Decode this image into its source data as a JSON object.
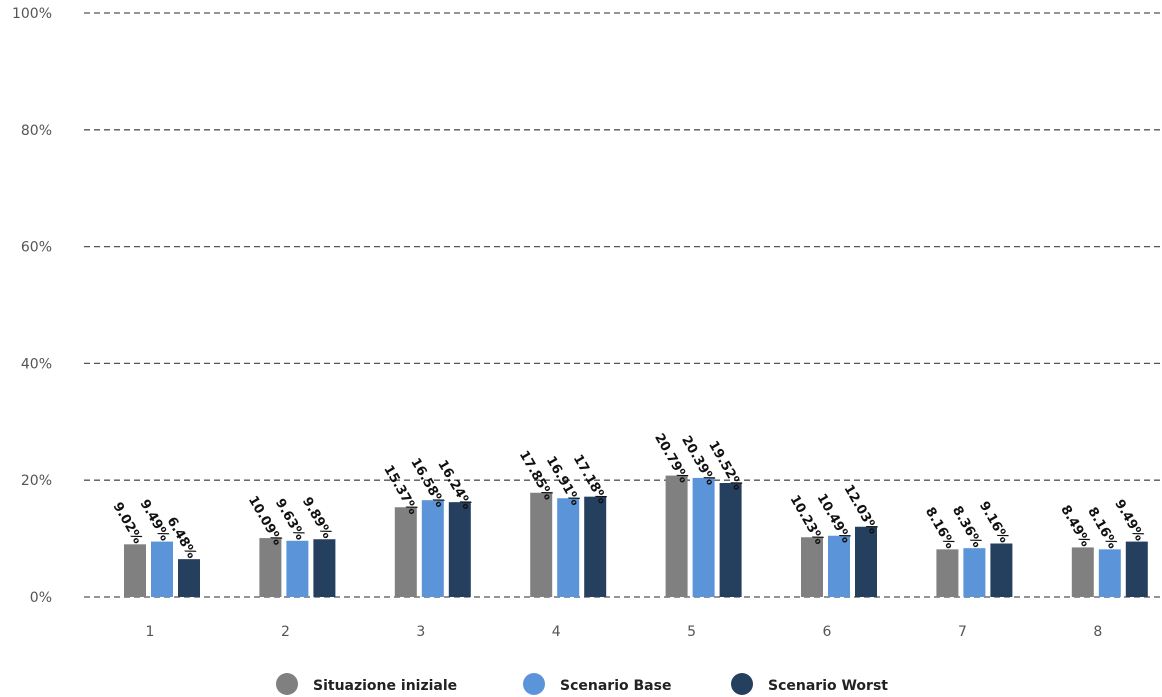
{
  "chart_data": {
    "type": "bar",
    "categories": [
      "1",
      "2",
      "3",
      "4",
      "5",
      "6",
      "7",
      "8"
    ],
    "series": [
      {
        "name": "Situazione iniziale",
        "color": "#808080",
        "values": [
          9.02,
          10.09,
          15.37,
          17.85,
          20.79,
          10.23,
          8.16,
          8.49
        ],
        "labels": [
          "9.02%",
          "10.09%",
          "15.37%",
          "17.85%",
          "20.79%",
          "10.23%",
          "8.16%",
          "8.49%"
        ]
      },
      {
        "name": "Scenario Base",
        "color": "#5b94d8",
        "values": [
          9.49,
          9.63,
          16.58,
          16.91,
          20.39,
          10.49,
          8.36,
          8.16
        ],
        "labels": [
          "9.49%",
          "9.63%",
          "16.58%",
          "16.91%",
          "20.39%",
          "10.49%",
          "8.36%",
          "8.16%"
        ]
      },
      {
        "name": "Scenario Worst",
        "color": "#253f5f",
        "values": [
          6.48,
          9.89,
          16.24,
          17.18,
          19.52,
          12.03,
          9.16,
          9.49
        ],
        "labels": [
          "6.48%",
          "9.89%",
          "16.24%",
          "17.18%",
          "19.52%",
          "12.03%",
          "9.16%",
          "9.49%"
        ]
      }
    ],
    "y_ticks": [
      "0%",
      "20%",
      "40%",
      "60%",
      "80%",
      "100%"
    ],
    "ylim": [
      0,
      100
    ],
    "grid": true,
    "legend_position": "bottom"
  }
}
